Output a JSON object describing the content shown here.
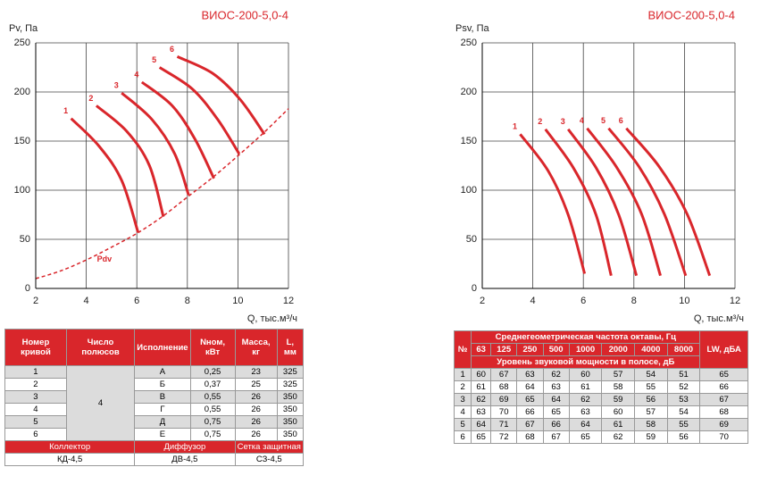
{
  "chart_data": [
    {
      "type": "line",
      "title": "ВИОС-200-5,0-4",
      "y_label": "Pv, Па",
      "x_label": "Q, тыс.м³/ч",
      "xlim": [
        2,
        12
      ],
      "xticks": [
        2,
        4,
        6,
        8,
        10,
        12
      ],
      "ylim": [
        0,
        250
      ],
      "yticks": [
        0,
        50,
        100,
        150,
        200,
        250
      ],
      "grid": true,
      "series": [
        {
          "name": "1",
          "color": "#d9262b",
          "x": [
            3.4,
            4.5,
            5.4,
            6.05
          ],
          "values": [
            173,
            145,
            110,
            57
          ]
        },
        {
          "name": "2",
          "color": "#d9262b",
          "x": [
            4.4,
            5.6,
            6.5,
            7.05
          ],
          "values": [
            186,
            160,
            125,
            73
          ]
        },
        {
          "name": "3",
          "color": "#d9262b",
          "x": [
            5.4,
            6.6,
            7.5,
            8.05
          ],
          "values": [
            199,
            172,
            137,
            95
          ]
        },
        {
          "name": "4",
          "color": "#d9262b",
          "x": [
            6.2,
            7.4,
            8.3,
            9.05
          ],
          "values": [
            210,
            186,
            152,
            112
          ]
        },
        {
          "name": "5",
          "color": "#d9262b",
          "x": [
            6.9,
            8.2,
            9.2,
            10.05
          ],
          "values": [
            225,
            203,
            172,
            137
          ]
        },
        {
          "name": "6",
          "color": "#d9262b",
          "x": [
            7.6,
            9,
            10.1,
            11.05
          ],
          "values": [
            236,
            219,
            192,
            157
          ]
        },
        {
          "name": "Pdv",
          "color": "#d9262b",
          "dashed": true,
          "x": [
            2,
            3,
            4,
            5,
            6,
            7,
            8,
            9,
            10,
            11,
            12
          ],
          "values": [
            10,
            18,
            29,
            42,
            56,
            73,
            93,
            113,
            135,
            158,
            183
          ]
        }
      ]
    },
    {
      "type": "line",
      "title": "ВИОС-200-5,0-4",
      "y_label": "Psv, Па",
      "x_label": "Q, тыс.м³/ч",
      "xlim": [
        2,
        12
      ],
      "xticks": [
        2,
        4,
        6,
        8,
        10,
        12
      ],
      "ylim": [
        0,
        250
      ],
      "yticks": [
        0,
        50,
        100,
        150,
        200,
        250
      ],
      "grid": true,
      "series": [
        {
          "name": "1",
          "color": "#d9262b",
          "x": [
            3.5,
            4.6,
            5.4,
            6.05
          ],
          "values": [
            157,
            120,
            75,
            15
          ]
        },
        {
          "name": "2",
          "color": "#d9262b",
          "x": [
            4.5,
            5.6,
            6.5,
            7.1
          ],
          "values": [
            162,
            123,
            75,
            13
          ]
        },
        {
          "name": "3",
          "color": "#d9262b",
          "x": [
            5.4,
            6.5,
            7.4,
            8.1
          ],
          "values": [
            162,
            123,
            75,
            13
          ]
        },
        {
          "name": "4",
          "color": "#d9262b",
          "x": [
            6.15,
            7.3,
            8.3,
            9.05
          ],
          "values": [
            163,
            124,
            76,
            13
          ]
        },
        {
          "name": "5",
          "color": "#d9262b",
          "x": [
            7,
            8.2,
            9.2,
            10.05
          ],
          "values": [
            163,
            124,
            76,
            13
          ]
        },
        {
          "name": "6",
          "color": "#d9262b",
          "x": [
            7.7,
            9,
            10.1,
            11
          ],
          "values": [
            163,
            124,
            76,
            13
          ]
        }
      ]
    }
  ],
  "tables": [
    {
      "header": [
        "Номер кривой",
        "Число полюсов",
        "Исполнение",
        "Nном, кВт",
        "Масса, кг",
        "L, мм"
      ],
      "poles": "4",
      "rows": [
        [
          "1",
          "А",
          "0,25",
          "23",
          "325"
        ],
        [
          "2",
          "Б",
          "0,37",
          "25",
          "325"
        ],
        [
          "3",
          "В",
          "0,55",
          "26",
          "350"
        ],
        [
          "4",
          "Г",
          "0,55",
          "26",
          "350"
        ],
        [
          "5",
          "Д",
          "0,75",
          "26",
          "350"
        ],
        [
          "6",
          "Е",
          "0,75",
          "26",
          "350"
        ]
      ],
      "footer_header": [
        "Коллектор",
        "Диффузор",
        "Сетка защитная"
      ],
      "footer": [
        "КД-4,5",
        "ДВ-4,5",
        "СЗ-4,5"
      ]
    },
    {
      "num": "№",
      "freq_title": "Среднегеометрическая частота октавы, Гц",
      "freqs": [
        "63",
        "125",
        "250",
        "500",
        "1000",
        "2000",
        "4000",
        "8000"
      ],
      "level_title": "Уровень звуковой мощности в полосе, дБ",
      "lw": "LW, дБА",
      "rows": [
        [
          "1",
          "60",
          "67",
          "63",
          "62",
          "60",
          "57",
          "54",
          "51",
          "65"
        ],
        [
          "2",
          "61",
          "68",
          "64",
          "63",
          "61",
          "58",
          "55",
          "52",
          "66"
        ],
        [
          "3",
          "62",
          "69",
          "65",
          "64",
          "62",
          "59",
          "56",
          "53",
          "67"
        ],
        [
          "4",
          "63",
          "70",
          "66",
          "65",
          "63",
          "60",
          "57",
          "54",
          "68"
        ],
        [
          "5",
          "64",
          "71",
          "67",
          "66",
          "64",
          "61",
          "58",
          "55",
          "69"
        ],
        [
          "6",
          "65",
          "72",
          "68",
          "67",
          "65",
          "62",
          "59",
          "56",
          "70"
        ]
      ]
    }
  ]
}
